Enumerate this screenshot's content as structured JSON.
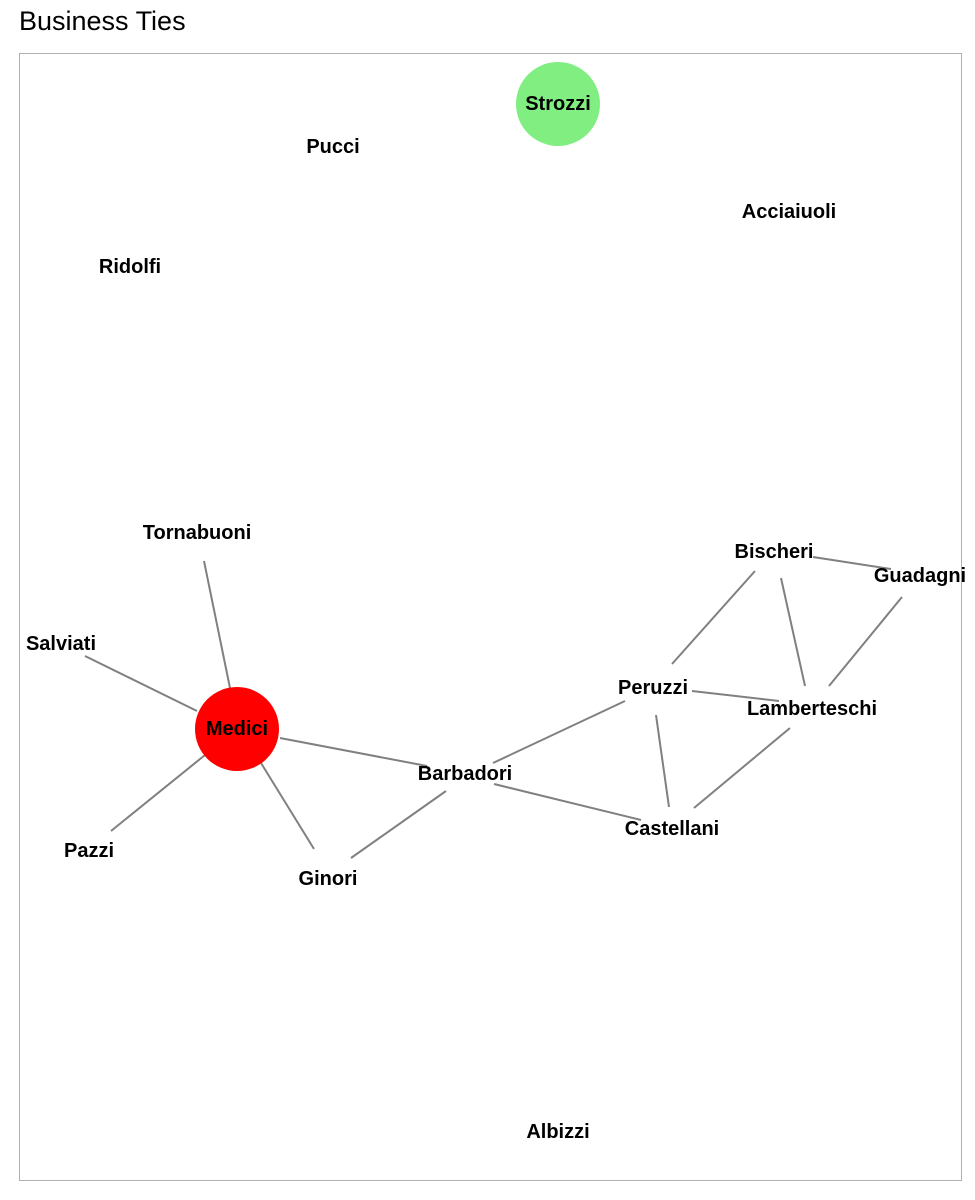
{
  "title": "Business Ties",
  "colors": {
    "edge": "#808080",
    "border": "#b0b0b0",
    "highlight_medici": "#ff0000",
    "highlight_strozzi": "#80ee80"
  },
  "nodes": [
    {
      "id": "strozzi",
      "label": "Strozzi",
      "highlight": "highlight_strozzi"
    },
    {
      "id": "pucci",
      "label": "Pucci"
    },
    {
      "id": "acciaiuoli",
      "label": "Acciaiuoli"
    },
    {
      "id": "ridolfi",
      "label": "Ridolfi"
    },
    {
      "id": "tornabuoni",
      "label": "Tornabuoni"
    },
    {
      "id": "bischeri",
      "label": "Bischeri"
    },
    {
      "id": "guadagni",
      "label": "Guadagni"
    },
    {
      "id": "salviati",
      "label": "Salviati"
    },
    {
      "id": "peruzzi",
      "label": "Peruzzi"
    },
    {
      "id": "lamberteschi",
      "label": "Lamberteschi"
    },
    {
      "id": "medici",
      "label": "Medici",
      "highlight": "highlight_medici"
    },
    {
      "id": "barbadori",
      "label": "Barbadori"
    },
    {
      "id": "castellani",
      "label": "Castellani"
    },
    {
      "id": "pazzi",
      "label": "Pazzi"
    },
    {
      "id": "ginori",
      "label": "Ginori"
    },
    {
      "id": "albizzi",
      "label": "Albizzi"
    }
  ],
  "edges": [
    [
      "medici",
      "tornabuoni"
    ],
    [
      "medici",
      "salviati"
    ],
    [
      "medici",
      "pazzi"
    ],
    [
      "medici",
      "ginori"
    ],
    [
      "medici",
      "barbadori"
    ],
    [
      "barbadori",
      "ginori"
    ],
    [
      "barbadori",
      "peruzzi"
    ],
    [
      "barbadori",
      "castellani"
    ],
    [
      "peruzzi",
      "castellani"
    ],
    [
      "peruzzi",
      "lamberteschi"
    ],
    [
      "peruzzi",
      "bischeri"
    ],
    [
      "bischeri",
      "lamberteschi"
    ],
    [
      "bischeri",
      "guadagni"
    ],
    [
      "guadagni",
      "lamberteschi"
    ],
    [
      "lamberteschi",
      "castellani"
    ]
  ]
}
